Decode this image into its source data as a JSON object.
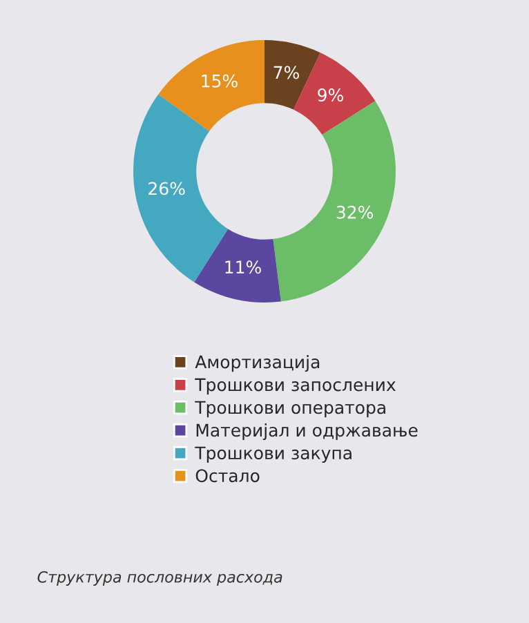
{
  "chart_data": {
    "type": "donut",
    "categories": [
      "Амортизација",
      "Трошкови запослених",
      "Трошкови оператора",
      "Материјал и одржавање",
      "Трошкови закупа",
      "Остало"
    ],
    "values": [
      7,
      9,
      32,
      11,
      26,
      15
    ],
    "colors": [
      "#6b4220",
      "#c8404a",
      "#6cbd68",
      "#5b46a0",
      "#44a8c0",
      "#e8901e"
    ],
    "value_labels": [
      "7%",
      "9%",
      "32%",
      "11%",
      "26%",
      "15%"
    ],
    "legend": "bottom",
    "annotations": [
      "Структура пословних расхода"
    ]
  }
}
